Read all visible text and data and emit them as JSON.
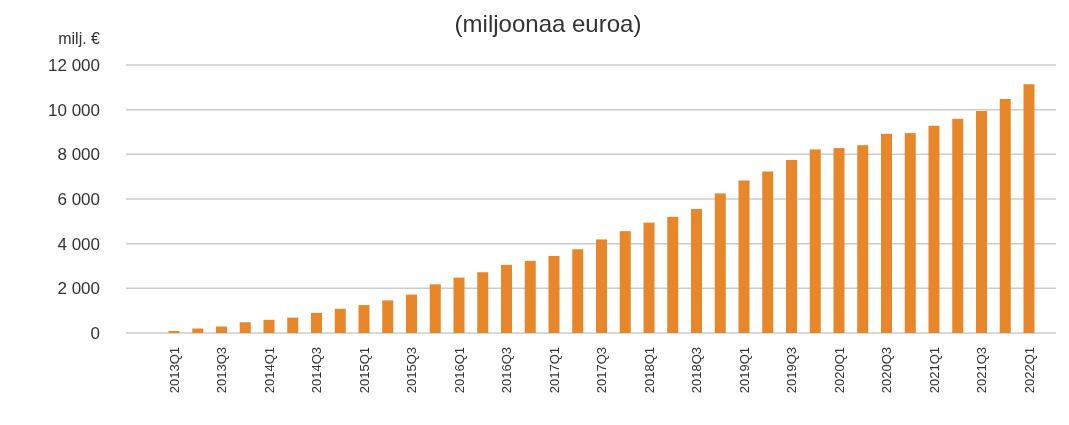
{
  "chart_data": {
    "type": "bar",
    "title": "(miljoonaa euroa)",
    "ylabel": "milj. €",
    "categories": [
      "2013Q1",
      null,
      "2013Q3",
      null,
      "2014Q1",
      null,
      "2014Q3",
      null,
      "2015Q1",
      null,
      "2015Q3",
      null,
      "2016Q1",
      null,
      "2016Q3",
      null,
      "2017Q1",
      null,
      "2017Q3",
      null,
      "2018Q1",
      null,
      "2018Q3",
      null,
      "2019Q1",
      null,
      "2019Q3",
      null,
      "2020Q1",
      null,
      "2020Q3",
      null,
      "2021Q1",
      null,
      "2021Q3",
      null,
      "2022Q1"
    ],
    "values": [
      90,
      200,
      290,
      480,
      590,
      690,
      900,
      1080,
      1250,
      1460,
      1720,
      2180,
      2480,
      2720,
      3050,
      3230,
      3450,
      3750,
      4190,
      4560,
      4940,
      5200,
      5550,
      6250,
      6830,
      7230,
      7750,
      8220,
      8280,
      8410,
      8920,
      8950,
      9280,
      9590,
      9940,
      10480,
      11140
    ],
    "color": "#e8872a",
    "ylim": [
      0,
      12000
    ],
    "yticks": [
      0,
      {
        "value": 2000,
        "label": "2 000"
      },
      {
        "value": 4000,
        "label": "4 000"
      },
      {
        "value": 6000,
        "label": "6 000"
      },
      {
        "value": 8000,
        "label": "8 000"
      },
      {
        "value": 10000,
        "label": "10 000"
      },
      {
        "value": 12000,
        "label": "12 000"
      }
    ],
    "grid": "y"
  }
}
